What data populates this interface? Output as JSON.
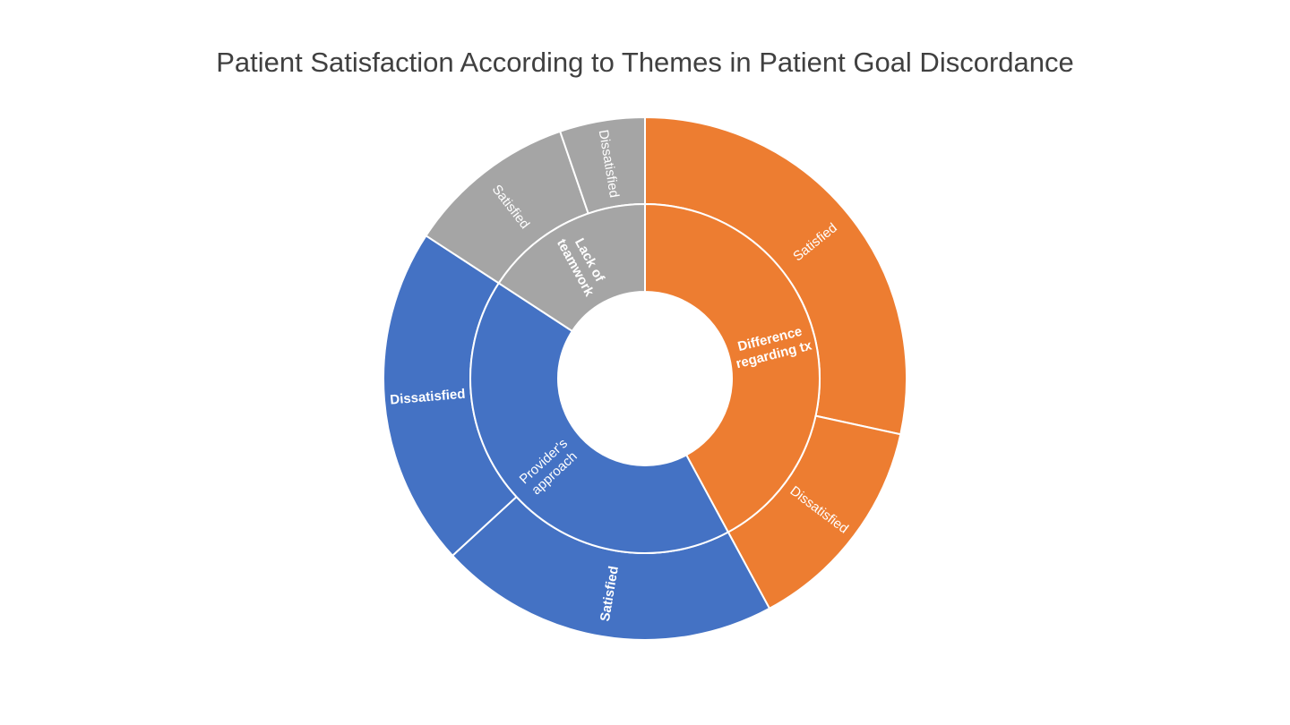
{
  "chart_data": {
    "type": "sunburst",
    "title": "Patient Satisfaction According to Themes in Patient Goal Discordance",
    "colors": {
      "Difference regarding tx": "#ED7D31",
      "Provider's approach": "#4472C4",
      "Lack of teamwork": "#A5A5A5"
    },
    "inner": [
      {
        "name": "Difference regarding tx",
        "lines": [
          "Difference",
          "regarding tx"
        ],
        "value": 40
      },
      {
        "name": "Provider's approach",
        "lines": [
          "Provider's",
          "approach"
        ],
        "value": 40
      },
      {
        "name": "Lack of teamwork",
        "lines": [
          "Lack of",
          "teamwork"
        ],
        "value": 15
      }
    ],
    "outer": [
      {
        "parent": "Difference regarding tx",
        "name": "Satisfied",
        "value": 27
      },
      {
        "parent": "Difference regarding tx",
        "name": "Dissatisfied",
        "value": 13
      },
      {
        "parent": "Provider's approach",
        "name": "Satisfied",
        "value": 20
      },
      {
        "parent": "Provider's approach",
        "name": "Dissatisfied",
        "value": 20
      },
      {
        "parent": "Lack of teamwork",
        "name": "Satisfied",
        "value": 10
      },
      {
        "parent": "Lack of teamwork",
        "name": "Dissatisfied",
        "value": 5
      }
    ]
  }
}
